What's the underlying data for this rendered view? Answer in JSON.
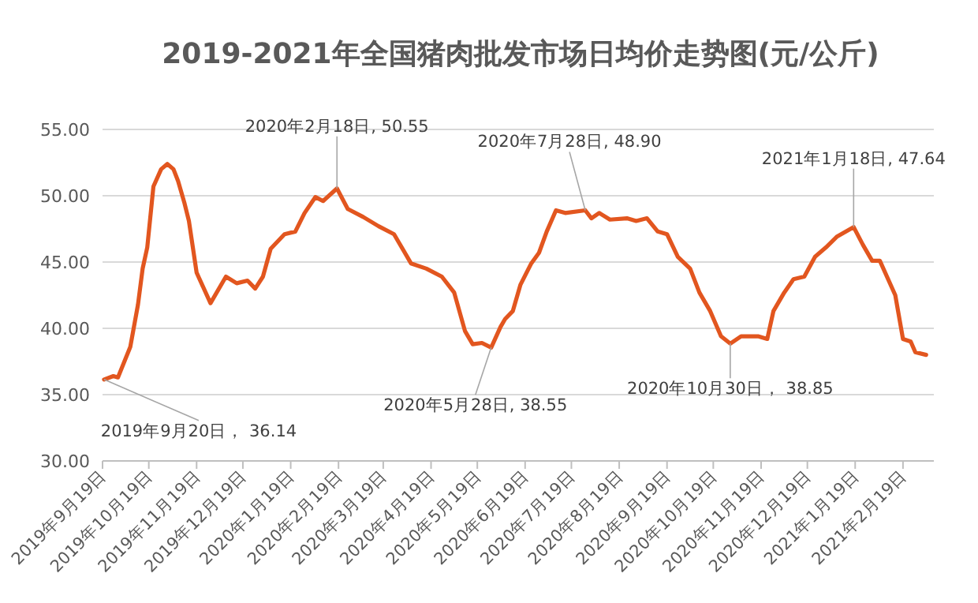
{
  "chart_data": {
    "type": "line",
    "title": "2019-2021年全国猪肉批发市场日均价走势图(元/公斤)",
    "x": [
      "2019-09-20",
      "2019-09-26",
      "2019-09-29",
      "2019-10-07",
      "2019-10-12",
      "2019-10-15",
      "2019-10-18",
      "2019-10-22",
      "2019-10-27",
      "2019-10-31",
      "2019-11-04",
      "2019-11-07",
      "2019-11-11",
      "2019-11-14",
      "2019-11-19",
      "2019-11-28",
      "2019-12-08",
      "2019-12-15",
      "2019-12-22",
      "2019-12-27",
      "2020-01-01",
      "2020-01-06",
      "2020-01-15",
      "2020-01-22",
      "2020-01-28",
      "2020-02-04",
      "2020-02-09",
      "2020-02-18",
      "2020-02-25",
      "2020-03-06",
      "2020-03-16",
      "2020-03-26",
      "2020-04-06",
      "2020-04-16",
      "2020-04-26",
      "2020-05-04",
      "2020-05-11",
      "2020-05-16",
      "2020-05-22",
      "2020-05-28",
      "2020-06-03",
      "2020-06-06",
      "2020-06-11",
      "2020-06-16",
      "2020-06-23",
      "2020-06-28",
      "2020-07-03",
      "2020-07-09",
      "2020-07-15",
      "2020-07-28",
      "2020-08-01",
      "2020-08-06",
      "2020-08-13",
      "2020-08-24",
      "2020-08-30",
      "2020-09-06",
      "2020-09-13",
      "2020-09-19",
      "2020-09-26",
      "2020-10-04",
      "2020-10-10",
      "2020-10-17",
      "2020-10-24",
      "2020-10-30",
      "2020-11-06",
      "2020-11-17",
      "2020-11-23",
      "2020-11-27",
      "2020-12-04",
      "2020-12-10",
      "2020-12-17",
      "2020-12-24",
      "2020-12-31",
      "2021-01-07",
      "2021-01-18",
      "2021-01-24",
      "2021-01-30",
      "2021-02-04",
      "2021-02-14",
      "2021-02-19",
      "2021-02-24",
      "2021-02-27",
      "2021-03-06"
    ],
    "series": [
      {
        "color": "#e2561f",
        "values": [
          36.14,
          36.4,
          36.3,
          38.6,
          41.8,
          44.5,
          46.1,
          50.7,
          52.0,
          52.4,
          52.0,
          51.1,
          49.5,
          48.1,
          44.2,
          41.9,
          43.9,
          43.4,
          43.6,
          43.0,
          43.9,
          46.0,
          47.1,
          47.3,
          48.7,
          49.9,
          49.6,
          50.55,
          49.0,
          48.4,
          47.7,
          47.1,
          44.9,
          44.5,
          43.9,
          42.7,
          39.8,
          38.8,
          38.9,
          38.55,
          40.1,
          40.7,
          41.3,
          43.3,
          44.9,
          45.7,
          47.3,
          48.9,
          48.7,
          48.9,
          48.3,
          48.7,
          48.2,
          48.3,
          48.1,
          48.3,
          47.3,
          47.1,
          45.4,
          44.5,
          42.7,
          41.3,
          39.4,
          38.85,
          39.4,
          39.4,
          39.2,
          41.3,
          42.7,
          43.7,
          43.9,
          45.4,
          46.1,
          46.9,
          47.64,
          46.3,
          45.1,
          45.1,
          42.5,
          39.2,
          39.0,
          38.2,
          38.0
        ]
      }
    ],
    "xlim": [
      "2019-09-19",
      "2021-03-11"
    ],
    "xticks": [
      {
        "value": "2019-09-19",
        "label": "2019年9月19日"
      },
      {
        "value": "2019-10-19",
        "label": "2019年10月19日"
      },
      {
        "value": "2019-11-19",
        "label": "2019年11月19日"
      },
      {
        "value": "2019-12-19",
        "label": "2019年12月19日"
      },
      {
        "value": "2020-01-19",
        "label": "2020年1月19日"
      },
      {
        "value": "2020-02-19",
        "label": "2020年2月19日"
      },
      {
        "value": "2020-03-19",
        "label": "2020年3月19日"
      },
      {
        "value": "2020-04-19",
        "label": "2020年4月19日"
      },
      {
        "value": "2020-05-19",
        "label": "2020年5月19日"
      },
      {
        "value": "2020-06-19",
        "label": "2020年6月19日"
      },
      {
        "value": "2020-07-19",
        "label": "2020年7月19日"
      },
      {
        "value": "2020-08-19",
        "label": "2020年8月19日"
      },
      {
        "value": "2020-09-19",
        "label": "2020年9月19日"
      },
      {
        "value": "2020-10-19",
        "label": "2020年10月19日"
      },
      {
        "value": "2020-11-19",
        "label": "2020年11月19日"
      },
      {
        "value": "2020-12-19",
        "label": "2020年12月19日"
      },
      {
        "value": "2021-01-19",
        "label": "2021年1月19日"
      },
      {
        "value": "2021-02-19",
        "label": "2021年2月19日"
      }
    ],
    "ylim": [
      30,
      55
    ],
    "yticks": [
      {
        "value": 30,
        "label": "30.00"
      },
      {
        "value": 35,
        "label": "35.00"
      },
      {
        "value": 40,
        "label": "40.00"
      },
      {
        "value": 45,
        "label": "45.00"
      },
      {
        "value": 50,
        "label": "50.00"
      },
      {
        "value": 55,
        "label": "55.00"
      }
    ],
    "grid": "y",
    "marker": "none",
    "line_style": "solid",
    "annotations": [
      {
        "text": "2019年9月20日， 36.14",
        "x": "2019-09-20",
        "y": 36.14
      },
      {
        "text": "2020年2月18日, 50.55",
        "x": "2020-02-18",
        "y": 50.55
      },
      {
        "text": "2020年5月28日, 38.55",
        "x": "2020-05-28",
        "y": 38.55
      },
      {
        "text": "2020年7月28日, 48.90",
        "x": "2020-07-28",
        "y": 48.9
      },
      {
        "text": "2020年10月30日， 38.85",
        "x": "2020-10-30",
        "y": 38.85
      },
      {
        "text": "2021年1月18日, 47.64",
        "x": "2021-01-18",
        "y": 47.64
      }
    ]
  }
}
